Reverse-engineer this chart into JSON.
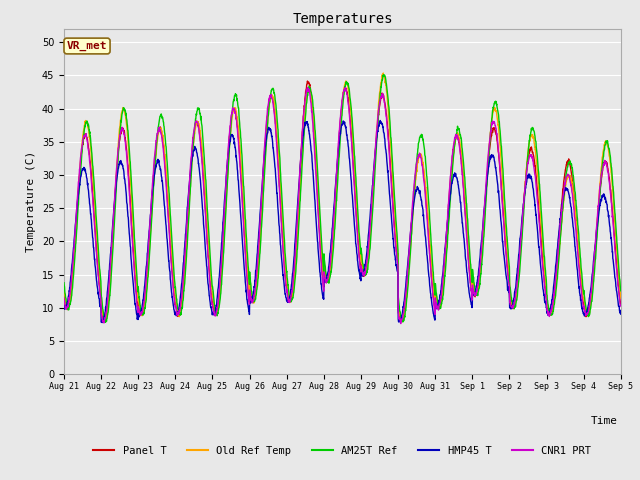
{
  "title": "Temperatures",
  "xlabel": "Time",
  "ylabel": "Temperature (C)",
  "ylim": [
    0,
    52
  ],
  "yticks": [
    0,
    5,
    10,
    15,
    20,
    25,
    30,
    35,
    40,
    45,
    50
  ],
  "fig_bg_color": "#e8e8e8",
  "plot_bg_color": "#e8e8e8",
  "annotation_text": "VR_met",
  "annotation_fg": "#8b0000",
  "annotation_bg": "#ffffcc",
  "annotation_edge": "#8b6914",
  "series": {
    "Panel T": {
      "color": "#cc0000",
      "lw": 1.0
    },
    "Old Ref Temp": {
      "color": "#ffa500",
      "lw": 1.0
    },
    "AM25T Ref": {
      "color": "#00cc00",
      "lw": 1.0
    },
    "HMP45 T": {
      "color": "#0000bb",
      "lw": 1.0
    },
    "CNR1 PRT": {
      "color": "#cc00cc",
      "lw": 1.0
    }
  },
  "xtick_labels": [
    "Aug 21",
    "Aug 22",
    "Aug 23",
    "Aug 24",
    "Aug 25",
    "Aug 26",
    "Aug 27",
    "Aug 28",
    "Aug 29",
    "Aug 30",
    "Aug 31",
    "Sep 1",
    "Sep 2",
    "Sep 3",
    "Sep 4",
    "Sep 5"
  ],
  "n_days": 15,
  "pts_per_day": 144,
  "day_mins": [
    10,
    8,
    9,
    9,
    9,
    11,
    11,
    14,
    15,
    8,
    10,
    12,
    10,
    9,
    9
  ],
  "day_maxs_panel": [
    36,
    37,
    37,
    38,
    40,
    42,
    44,
    43,
    42,
    33,
    36,
    37,
    34,
    32,
    32
  ],
  "day_maxs_oldref": [
    38,
    40,
    37,
    38,
    40,
    42,
    43,
    44,
    45,
    33,
    36,
    40,
    36,
    30,
    35
  ],
  "day_maxs_am25": [
    38,
    40,
    39,
    40,
    42,
    43,
    43,
    44,
    45,
    36,
    37,
    41,
    37,
    32,
    35
  ],
  "day_maxs_hmp45": [
    31,
    32,
    32,
    34,
    36,
    37,
    38,
    38,
    38,
    28,
    30,
    33,
    30,
    28,
    27
  ],
  "day_maxs_cnr1": [
    36,
    37,
    37,
    38,
    40,
    42,
    43,
    43,
    42,
    33,
    36,
    38,
    33,
    30,
    32
  ]
}
